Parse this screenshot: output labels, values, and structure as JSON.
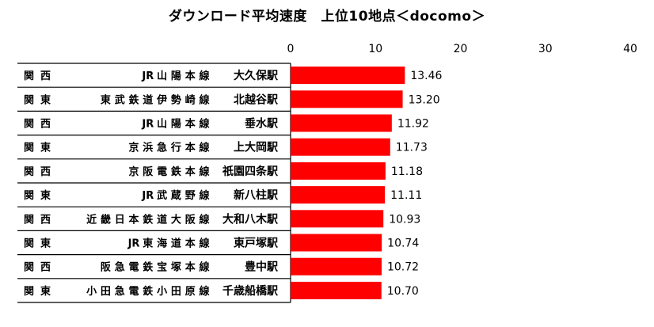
{
  "chart_data": {
    "type": "bar",
    "orientation": "horizontal",
    "title": "ダウンロード平均速度　上位10地点＜docomo＞",
    "xlim": [
      0,
      40
    ],
    "xticks": [
      0,
      10,
      20,
      30,
      40
    ],
    "tick_position": "top",
    "grid": false,
    "bar_color": "#ff0000",
    "rows": [
      {
        "region": "関西",
        "line": "JR山陽本線",
        "station": "大久保駅",
        "value": 13.46,
        "label": "13.46"
      },
      {
        "region": "関東",
        "line": "東武鉄道伊勢崎線",
        "station": "北越谷駅",
        "value": 13.2,
        "label": "13.20"
      },
      {
        "region": "関西",
        "line": "JR山陽本線",
        "station": "垂水駅",
        "value": 11.92,
        "label": "11.92"
      },
      {
        "region": "関東",
        "line": "京浜急行本線",
        "station": "上大岡駅",
        "value": 11.73,
        "label": "11.73"
      },
      {
        "region": "関西",
        "line": "京阪電鉄本線",
        "station": "祇園四条駅",
        "value": 11.18,
        "label": "11.18"
      },
      {
        "region": "関東",
        "line": "JR武蔵野線",
        "station": "新八柱駅",
        "value": 11.11,
        "label": "11.11"
      },
      {
        "region": "関西",
        "line": "近畿日本鉄道大阪線",
        "station": "大和八木駅",
        "value": 10.93,
        "label": "10.93"
      },
      {
        "region": "関東",
        "line": "JR東海道本線",
        "station": "東戸塚駅",
        "value": 10.74,
        "label": "10.74"
      },
      {
        "region": "関西",
        "line": "阪急電鉄宝塚本線",
        "station": "豊中駅",
        "value": 10.72,
        "label": "10.72"
      },
      {
        "region": "関東",
        "line": "小田急電鉄小田原線",
        "station": "千歳船橋駅",
        "value": 10.7,
        "label": "10.70"
      }
    ]
  }
}
